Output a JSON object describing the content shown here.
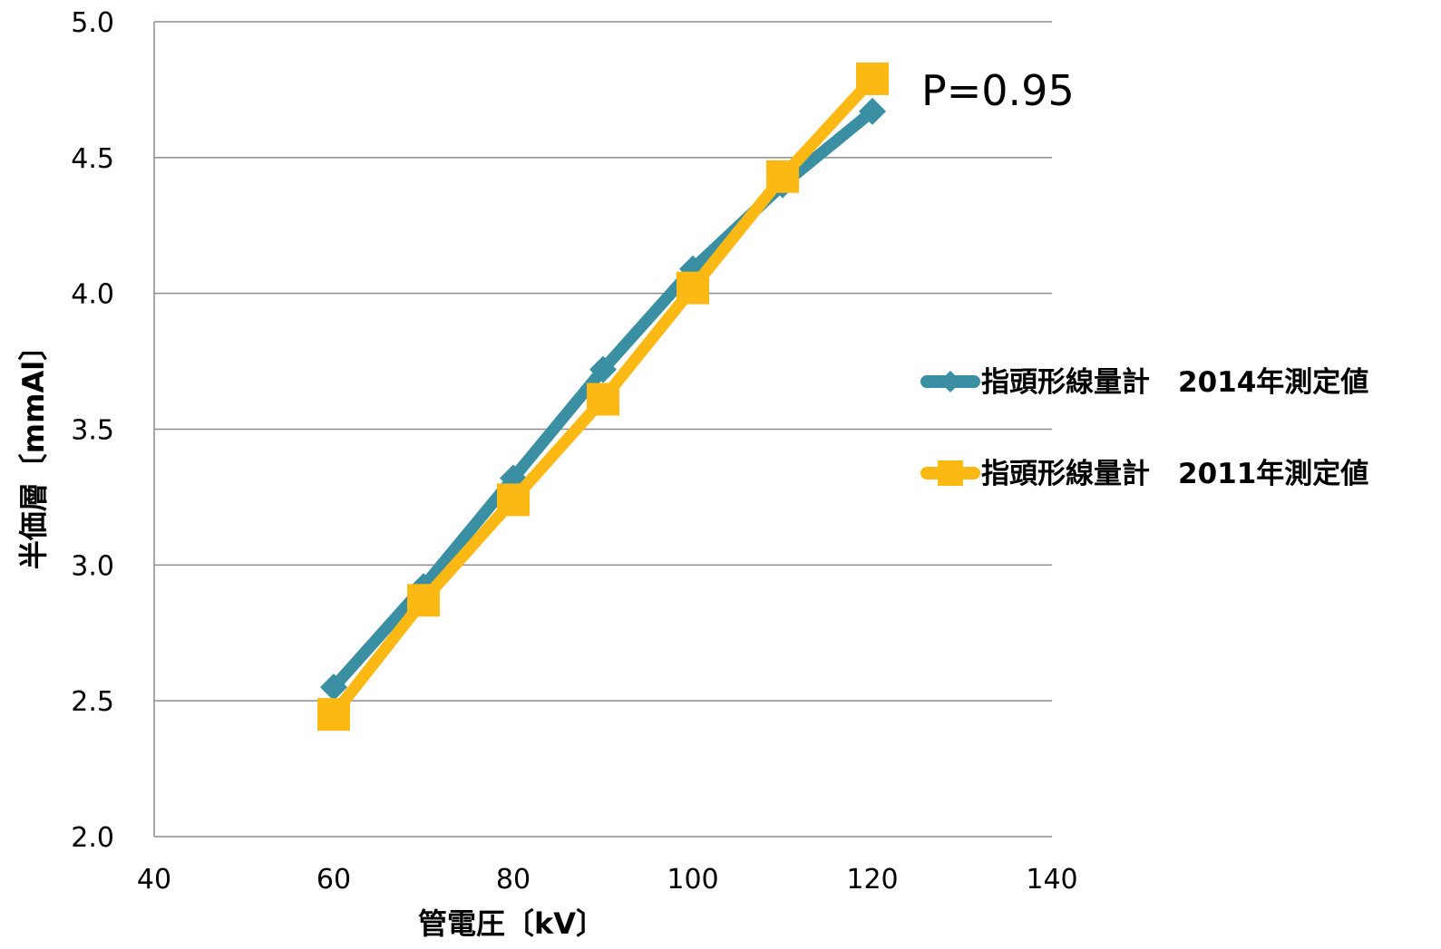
{
  "chart_data": {
    "type": "line",
    "xlabel": "管電圧〔kV〕",
    "ylabel": "半価層〔mmAl〕",
    "xlim": [
      40,
      140
    ],
    "ylim": [
      2.0,
      5.0
    ],
    "x_ticks": [
      "40",
      "60",
      "80",
      "100",
      "120",
      "140"
    ],
    "y_ticks": [
      "2.0",
      "2.5",
      "3.0",
      "3.5",
      "4.0",
      "4.5",
      "5.0"
    ],
    "x_tick_values": [
      40,
      60,
      80,
      100,
      120,
      140
    ],
    "y_tick_values": [
      2.0,
      2.5,
      3.0,
      3.5,
      4.0,
      4.5,
      5.0
    ],
    "grid": "horizontal",
    "legend_position": "right",
    "annotation": "P=0.95",
    "series": [
      {
        "name": "指頭形線量計　2014年測定値",
        "color": "#3a8fa3",
        "marker": "diamond",
        "x": [
          60,
          70,
          80,
          90,
          100,
          110,
          120
        ],
        "y": [
          2.55,
          2.92,
          3.32,
          3.72,
          4.09,
          4.4,
          4.67
        ]
      },
      {
        "name": "指頭形線量計　2011年測定値",
        "color": "#fcb813",
        "marker": "square",
        "x": [
          60,
          70,
          80,
          90,
          100,
          110,
          120
        ],
        "y": [
          2.45,
          2.87,
          3.24,
          3.61,
          4.02,
          4.43,
          4.79
        ]
      }
    ]
  }
}
